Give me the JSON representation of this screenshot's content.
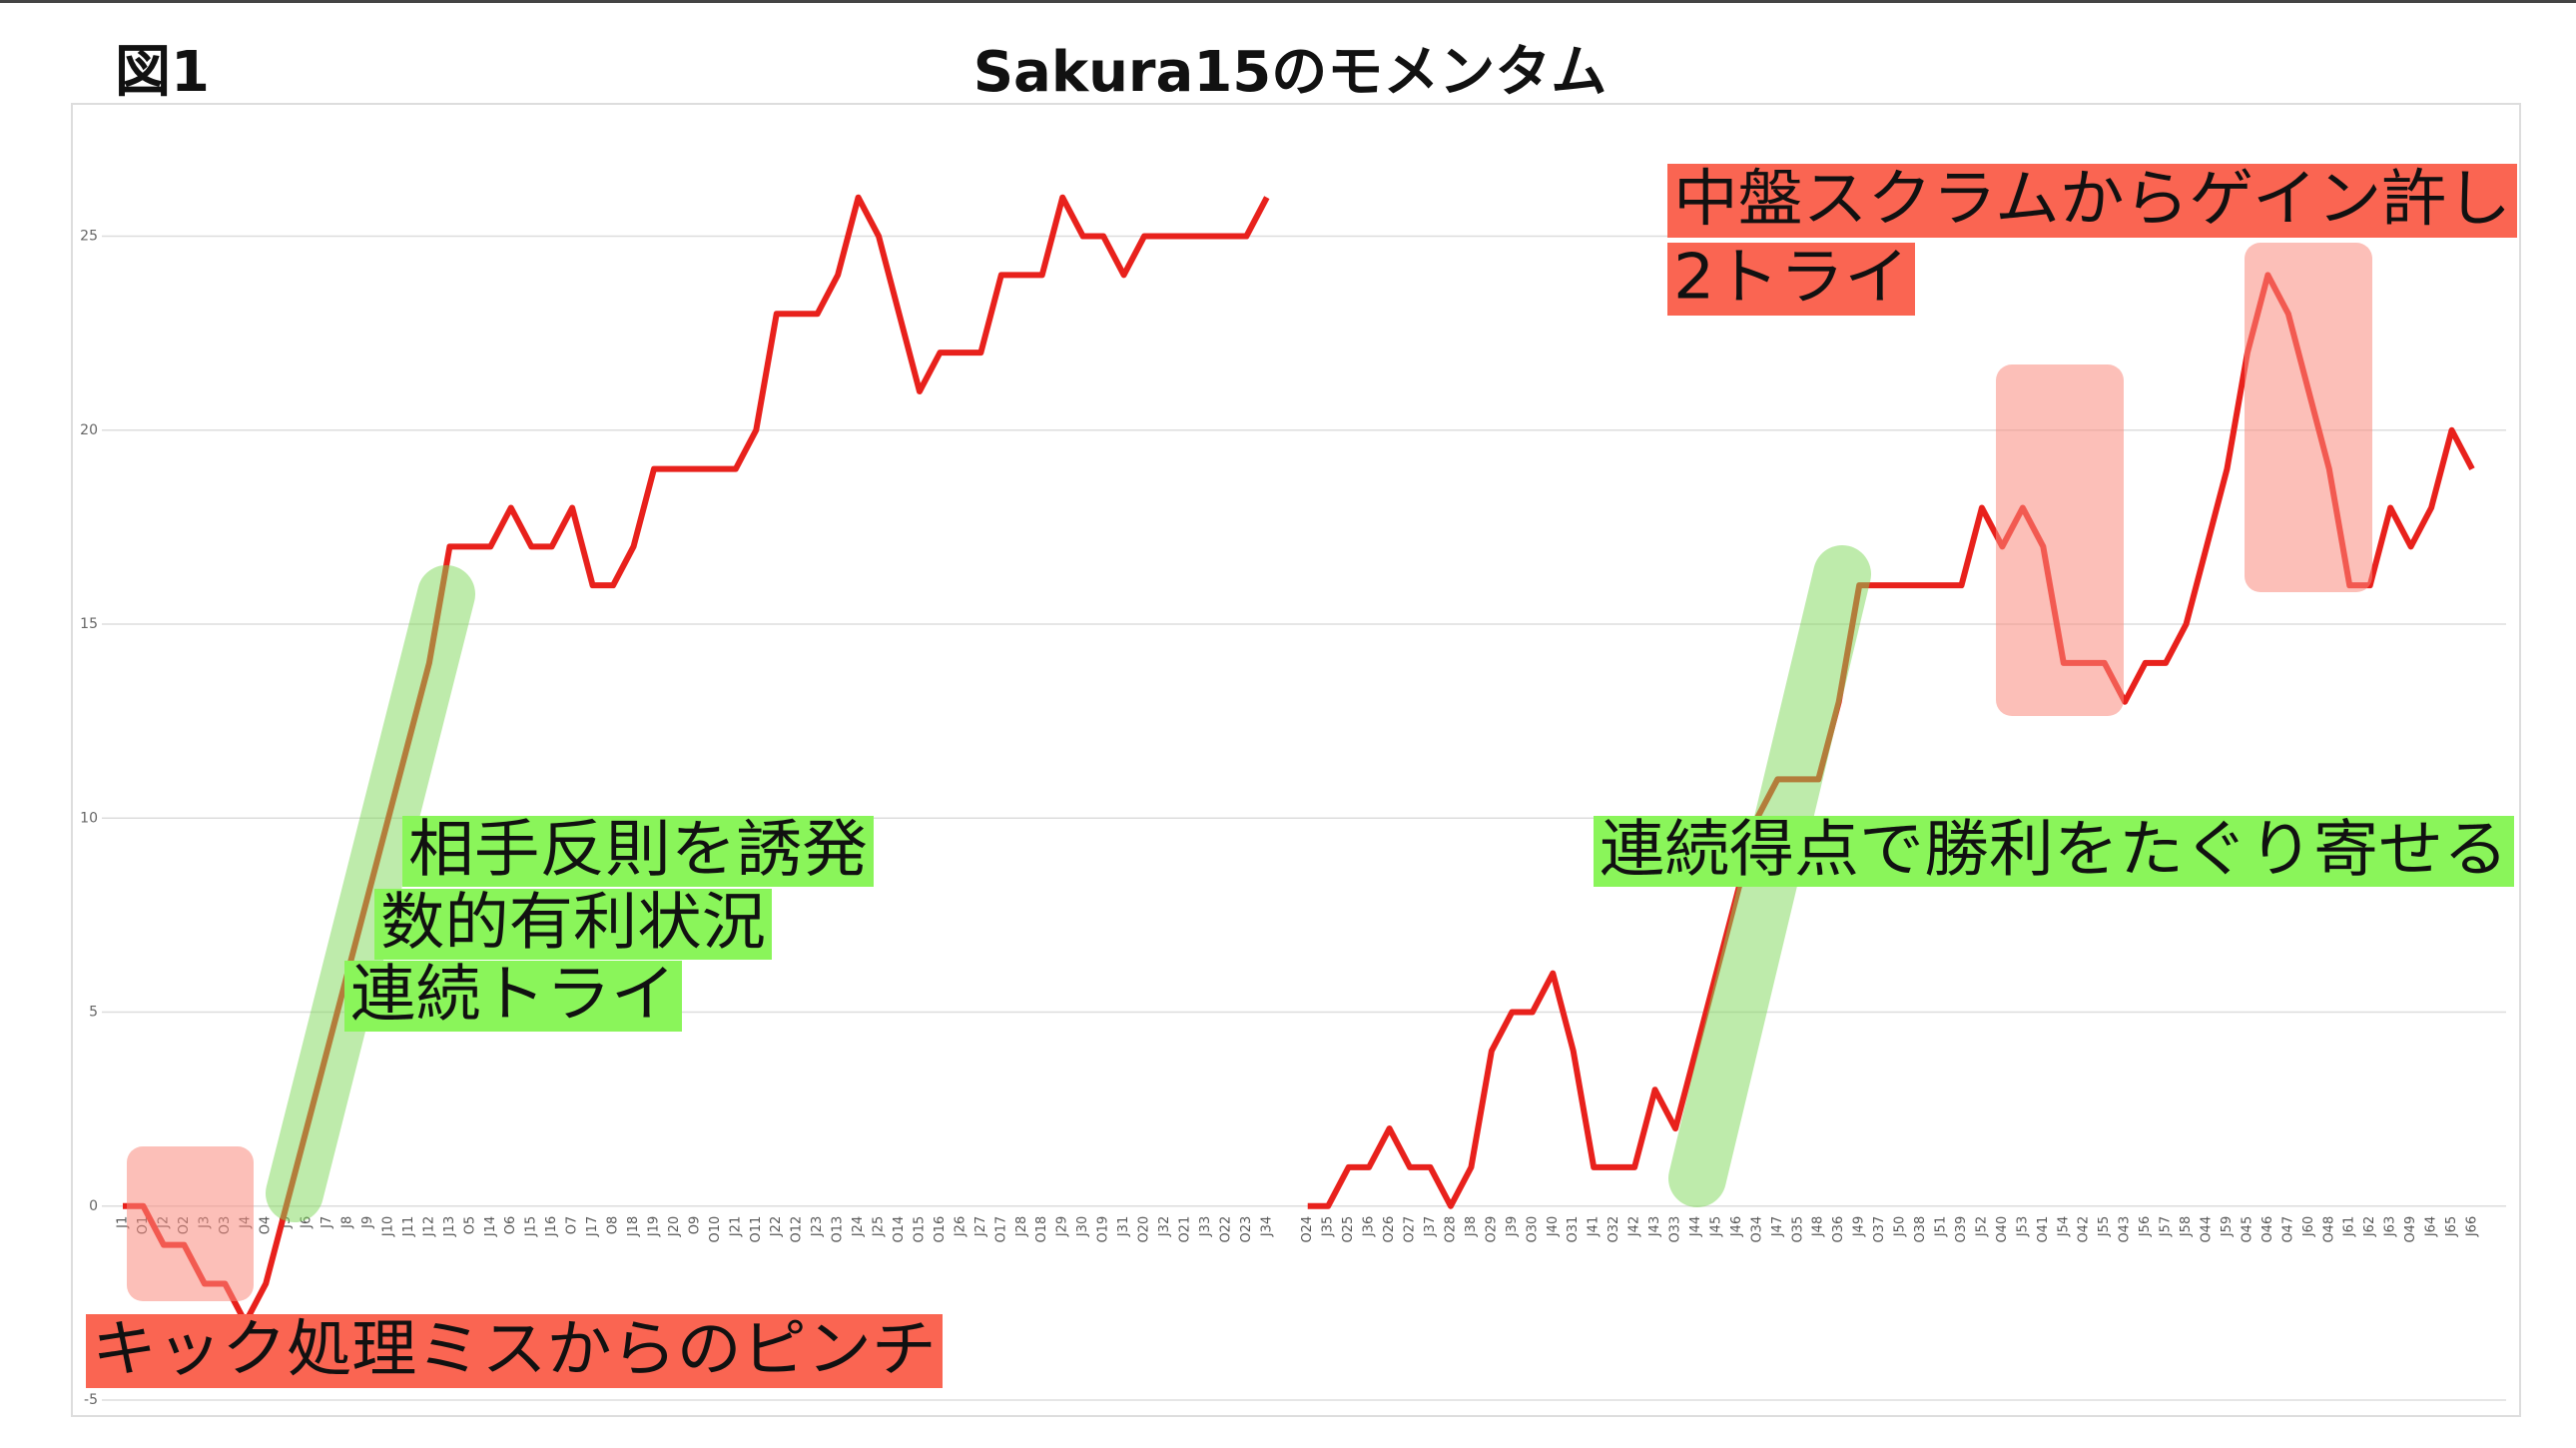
{
  "chart_data": {
    "type": "line",
    "label": "図1",
    "title": "Sakura15のモメンタム",
    "categories": [
      "J1",
      "O1",
      "J2",
      "O2",
      "J3",
      "O3",
      "J4",
      "O4",
      "J5",
      "J6",
      "J7",
      "J8",
      "J9",
      "J10",
      "J11",
      "J12",
      "J13",
      "O5",
      "J14",
      "O6",
      "J15",
      "J16",
      "O7",
      "J17",
      "O8",
      "J18",
      "J19",
      "J20",
      "O9",
      "O10",
      "J21",
      "O11",
      "J22",
      "O12",
      "J23",
      "O13",
      "J24",
      "J25",
      "O14",
      "O15",
      "O16",
      "J26",
      "J27",
      "O17",
      "J28",
      "O18",
      "J29",
      "J30",
      "O19",
      "J31",
      "O20",
      "J32",
      "O21",
      "J33",
      "O22",
      "O23",
      "J34",
      null,
      "O24",
      "J35",
      "O25",
      "J36",
      "O26",
      "O27",
      "J37",
      "O28",
      "J38",
      "O29",
      "J39",
      "O30",
      "J40",
      "O31",
      "J41",
      "O32",
      "J42",
      "J43",
      "O33",
      "J44",
      "J45",
      "J46",
      "O34",
      "J47",
      "O35",
      "J48",
      "O36",
      "J49",
      "O37",
      "J50",
      "O38",
      "J51",
      "O39",
      "J52",
      "O40",
      "J53",
      "O41",
      "J54",
      "O42",
      "J55",
      "O43",
      "J56",
      "J57",
      "J58",
      "O44",
      "J59",
      "O45",
      "O46",
      "O47",
      "J60",
      "O48",
      "J61",
      "J62",
      "J63",
      "O49",
      "J64",
      "J65",
      "J66"
    ],
    "series": [
      {
        "color": "#e8211c",
        "values": [
          0,
          0,
          -1,
          -1,
          -2,
          -2,
          -3,
          -2,
          0,
          2,
          4,
          6,
          8,
          10,
          12,
          14,
          17,
          17,
          17,
          18,
          17,
          17,
          18,
          16,
          16,
          17,
          19,
          19,
          19,
          19,
          19,
          20,
          23,
          23,
          23,
          24,
          26,
          25,
          23,
          21,
          22,
          22,
          22,
          24,
          24,
          24,
          26,
          25,
          25,
          24,
          25,
          25,
          25,
          25,
          25,
          25,
          26,
          null,
          0,
          0,
          1,
          1,
          2,
          1,
          1,
          0,
          1,
          4,
          5,
          5,
          6,
          4,
          1,
          1,
          1,
          3,
          2,
          4,
          6,
          8,
          10,
          11,
          11,
          11,
          13,
          16,
          16,
          16,
          16,
          16,
          16,
          18,
          17,
          18,
          17,
          14,
          14,
          14,
          13,
          14,
          14,
          15,
          17,
          19,
          22,
          24,
          23,
          21,
          19,
          16,
          16,
          18,
          17,
          18,
          20,
          19
        ]
      }
    ],
    "ylim": [
      -5,
      28
    ],
    "yticks": [
      -5,
      0,
      5,
      10,
      15,
      20,
      25
    ],
    "grid": true,
    "annotations": [
      "キック処理ミスからのピンチ",
      "相手反則を誘発",
      "数的有利状況",
      "連続トライ",
      "中盤スクラムからゲイン許し",
      "2トライ",
      "連続得点で勝利をたぐり寄せる"
    ]
  }
}
